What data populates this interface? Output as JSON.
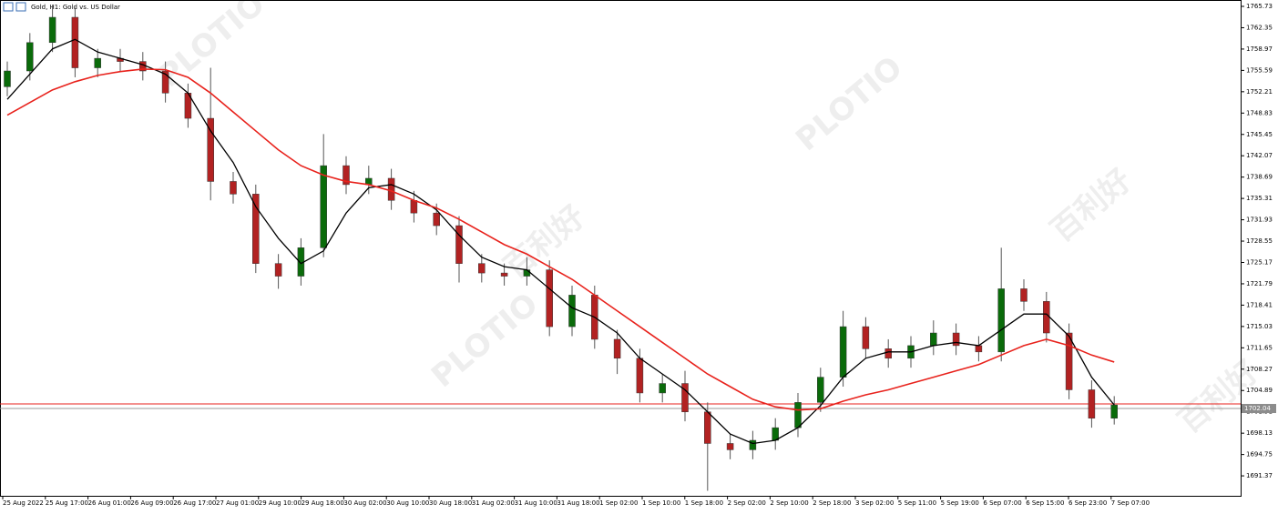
{
  "chart_data": {
    "type": "candlestick",
    "title": "Gold, H1: Gold vs. US Dollar",
    "watermark": [
      "PLOTIO",
      "百利好"
    ],
    "ylim": [
      1688.21,
      1766.74
    ],
    "yticks": [
      1765.73,
      1762.35,
      1758.97,
      1755.59,
      1752.21,
      1748.83,
      1745.45,
      1742.07,
      1738.69,
      1735.31,
      1731.93,
      1728.55,
      1725.17,
      1721.79,
      1718.41,
      1715.03,
      1711.65,
      1708.27,
      1704.89,
      1701.51,
      1698.13,
      1694.75,
      1691.37
    ],
    "x_labels": [
      "25 Aug 2022",
      "25 Aug 17:00",
      "26 Aug 01:00",
      "26 Aug 09:00",
      "26 Aug 17:00",
      "27 Aug 01:00",
      "29 Aug 10:00",
      "29 Aug 18:00",
      "30 Aug 02:00",
      "30 Aug 10:00",
      "30 Aug 18:00",
      "31 Aug 02:00",
      "31 Aug 10:00",
      "31 Aug 18:00",
      "1 Sep 02:00",
      "1 Sep 10:00",
      "1 Sep 18:00",
      "2 Sep 02:00",
      "2 Sep 10:00",
      "2 Sep 18:00",
      "3 Sep 02:00",
      "5 Sep 11:00",
      "5 Sep 19:00",
      "6 Sep 07:00",
      "6 Sep 15:00",
      "6 Sep 23:00",
      "7 Sep 07:00"
    ],
    "up_color": "#0a6b0a",
    "down_color": "#b22222",
    "open": [
      1753,
      1755.5,
      1760,
      1764,
      1756,
      1757.5,
      1757,
      1755.5,
      1752,
      1748,
      1738,
      1736,
      1725,
      1723,
      1727.5,
      1740.5,
      1737.5,
      1738.5,
      1735,
      1733,
      1731,
      1725,
      1723.5,
      1723,
      1724,
      1715,
      1720,
      1713,
      1710,
      1704.5,
      1706,
      1701.5,
      1696.5,
      1695.5,
      1697,
      1699,
      1703,
      1707,
      1715,
      1711.5,
      1710,
      1712,
      1714,
      1712,
      1711,
      1721,
      1719,
      1714,
      1705,
      1700.5
    ],
    "high": [
      1757,
      1761.5,
      1766,
      1765.5,
      1759,
      1759,
      1758.5,
      1757,
      1753.5,
      1756,
      1739.5,
      1737.5,
      1726.5,
      1729,
      1745.5,
      1742,
      1740.5,
      1740,
      1736.5,
      1734.5,
      1732.5,
      1726.5,
      1725,
      1726,
      1725.5,
      1721.5,
      1721.5,
      1714.5,
      1711.5,
      1707.5,
      1708,
      1703,
      1698,
      1698.5,
      1700.5,
      1704.5,
      1708.5,
      1717.5,
      1716.5,
      1713,
      1713.5,
      1716,
      1715.5,
      1713.5,
      1727.5,
      1722.5,
      1720.5,
      1715.5,
      1706.5,
      1704
    ],
    "low": [
      1751.5,
      1754,
      1758.5,
      1754.5,
      1754.5,
      1755.5,
      1754,
      1750.5,
      1746.5,
      1735,
      1734.5,
      1723.5,
      1721,
      1721.5,
      1726,
      1736,
      1736,
      1733.5,
      1731.5,
      1729.5,
      1722,
      1722,
      1721.5,
      1721.5,
      1713.5,
      1713.5,
      1711.5,
      1707.5,
      1703,
      1703,
      1700,
      1689,
      1694,
      1694,
      1695.5,
      1697.5,
      1701.5,
      1705.5,
      1710,
      1708.5,
      1708.5,
      1710.5,
      1710.5,
      1709.5,
      1709.5,
      1717.5,
      1712.5,
      1703.5,
      1699,
      1699.5
    ],
    "close": [
      1755.5,
      1760,
      1764,
      1756,
      1757.5,
      1757,
      1755.5,
      1752,
      1748,
      1738,
      1736,
      1725,
      1723,
      1727.5,
      1740.5,
      1737.5,
      1738.5,
      1735,
      1733,
      1731,
      1725,
      1723.5,
      1723,
      1724,
      1715,
      1720,
      1713,
      1710,
      1704.5,
      1706,
      1701.5,
      1696.5,
      1695.5,
      1697,
      1699,
      1703,
      1707,
      1715,
      1711.5,
      1710,
      1712,
      1714,
      1712,
      1711,
      1721,
      1719,
      1714,
      1705,
      1700.5,
      1702.6
    ],
    "series": [
      {
        "color": "#000000",
        "values": [
          1751,
          1755,
          1759,
          1760.5,
          1758.5,
          1757.5,
          1756.5,
          1755,
          1752,
          1746,
          1741,
          1734,
          1729,
          1725,
          1727,
          1733,
          1737,
          1737.5,
          1736,
          1733.5,
          1729.5,
          1726,
          1724.5,
          1724,
          1721,
          1718,
          1716.5,
          1714,
          1710,
          1707.5,
          1705,
          1701.5,
          1698,
          1696.5,
          1697,
          1699,
          1702.5,
          1707,
          1710,
          1711,
          1711,
          1712,
          1712.5,
          1712,
          1714.5,
          1717,
          1717,
          1713.5,
          1707,
          1702.6
        ]
      },
      {
        "color": "#e8221c",
        "values": [
          1748.5,
          1750.5,
          1752.5,
          1753.8,
          1754.8,
          1755.4,
          1755.8,
          1755.7,
          1754.5,
          1752,
          1749,
          1746,
          1743,
          1740.5,
          1739,
          1738,
          1737.5,
          1736.5,
          1735,
          1733.8,
          1732,
          1730,
          1728,
          1726.5,
          1724.5,
          1722.5,
          1720,
          1717.5,
          1715,
          1712.5,
          1710,
          1707.5,
          1705.5,
          1703.5,
          1702.3,
          1701.8,
          1702,
          1703.2,
          1704.2,
          1705,
          1706,
          1707,
          1708,
          1709,
          1710.5,
          1712,
          1713,
          1712,
          1710.5,
          1709.4
        ]
      }
    ],
    "ask": 1702.76,
    "bid": {
      "value": 1702.04,
      "label": "1702.04"
    }
  }
}
